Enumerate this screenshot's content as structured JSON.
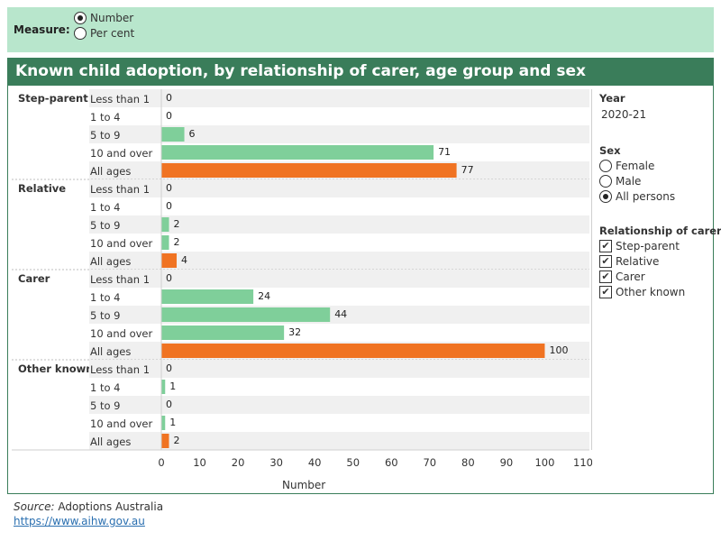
{
  "measure": {
    "label": "Measure:",
    "options": [
      {
        "label": "Number",
        "selected": true
      },
      {
        "label": "Per cent",
        "selected": false
      }
    ]
  },
  "title": "Known child adoption, by relationship of carer, age group and sex",
  "filters": {
    "year_label": "Year",
    "year_value": "2020-21",
    "sex_label": "Sex",
    "sex_options": [
      {
        "label": "Female",
        "selected": false
      },
      {
        "label": "Male",
        "selected": false
      },
      {
        "label": "All persons",
        "selected": true
      }
    ],
    "relationship_label": "Relationship of carer",
    "relationship_options": [
      {
        "label": "Step-parent",
        "checked": true
      },
      {
        "label": "Relative",
        "checked": true
      },
      {
        "label": "Carer",
        "checked": true
      },
      {
        "label": "Other known",
        "checked": true
      }
    ],
    "check_mark": "✔"
  },
  "footer": {
    "source_label": "Source:",
    "source_text": " Adoptions Australia",
    "link": "https://www.aihw.gov.au"
  },
  "chart_data": {
    "type": "bar",
    "orientation": "horizontal",
    "xlabel": "Number",
    "xlim": [
      0,
      110
    ],
    "xticks": [
      0,
      10,
      20,
      30,
      40,
      50,
      60,
      70,
      80,
      90,
      100,
      110
    ],
    "colors": {
      "age_group": "#7fcf9a",
      "all_ages": "#f07322"
    },
    "groups": [
      {
        "name": "Step-parent",
        "rows": [
          {
            "label": "Less than 1",
            "value": 0
          },
          {
            "label": "1 to 4",
            "value": 0
          },
          {
            "label": "5 to 9",
            "value": 6
          },
          {
            "label": "10 and over",
            "value": 71
          },
          {
            "label": "All ages",
            "value": 77
          }
        ]
      },
      {
        "name": "Relative",
        "rows": [
          {
            "label": "Less than 1",
            "value": 0
          },
          {
            "label": "1 to 4",
            "value": 0
          },
          {
            "label": "5 to 9",
            "value": 2
          },
          {
            "label": "10 and over",
            "value": 2
          },
          {
            "label": "All ages",
            "value": 4
          }
        ]
      },
      {
        "name": "Carer",
        "rows": [
          {
            "label": "Less than 1",
            "value": 0
          },
          {
            "label": "1 to 4",
            "value": 24
          },
          {
            "label": "5 to 9",
            "value": 44
          },
          {
            "label": "10 and over",
            "value": 32
          },
          {
            "label": "All ages",
            "value": 100
          }
        ]
      },
      {
        "name": "Other known",
        "rows": [
          {
            "label": "Less than 1",
            "value": 0
          },
          {
            "label": "1 to 4",
            "value": 1
          },
          {
            "label": "5 to 9",
            "value": 0
          },
          {
            "label": "10 and over",
            "value": 1
          },
          {
            "label": "All ages",
            "value": 2
          }
        ]
      }
    ]
  }
}
